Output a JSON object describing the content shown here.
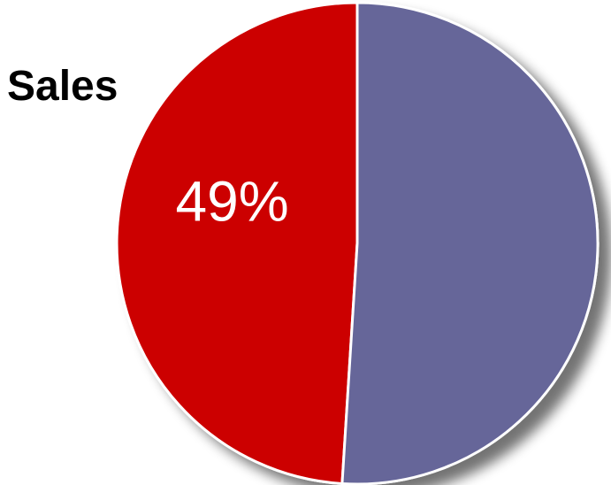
{
  "chart_data": {
    "type": "pie",
    "title": "Sales",
    "slices": [
      {
        "label": "49%",
        "value": 49,
        "color": "#cc0000"
      },
      {
        "label": "",
        "value": 51,
        "color": "#666699"
      }
    ],
    "start_angle_deg": 0,
    "direction": "counterclockwise",
    "shadow": true
  }
}
